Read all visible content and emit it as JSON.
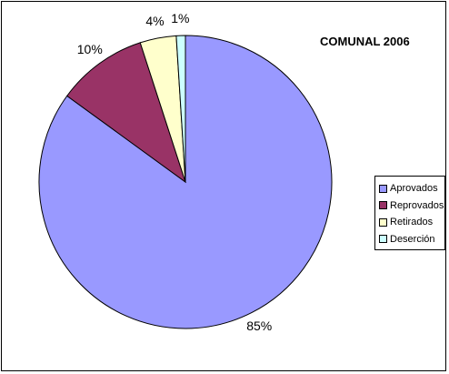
{
  "chart_data": {
    "type": "pie",
    "title": "COMUNAL 2006",
    "slices": [
      {
        "name": "Aprovados",
        "value": 85,
        "label": "85%",
        "color": "#9999FF"
      },
      {
        "name": "Reprovados",
        "value": 10,
        "label": "10%",
        "color": "#993366"
      },
      {
        "name": "Retirados",
        "value": 4,
        "label": "4%",
        "color": "#FFFFCC"
      },
      {
        "name": "Deserción",
        "value": 1,
        "label": "1%",
        "color": "#CCFFFF"
      }
    ],
    "legend_position": "right"
  }
}
